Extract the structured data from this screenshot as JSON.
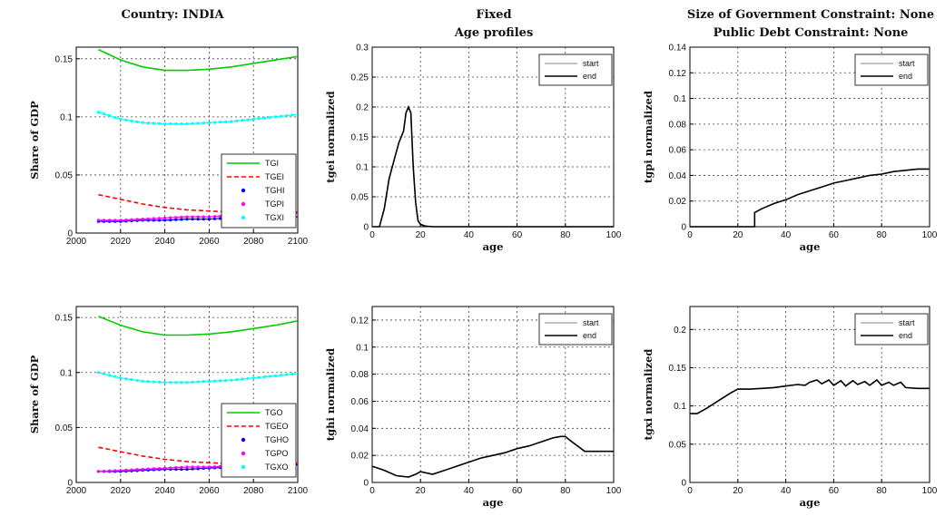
{
  "figure": {
    "titles": [
      "Country: INDIA",
      "Fixed",
      "Age profiles",
      "Size of Government Constraint: None",
      "Public Debt Constraint: None"
    ]
  },
  "chart_data": [
    {
      "id": "ax1",
      "type": "line",
      "title": "",
      "xlabel": "",
      "ylabel": "Share of GDP",
      "xlim": [
        2000,
        2100
      ],
      "ylim": [
        0,
        0.16
      ],
      "xticks": [
        2000,
        2020,
        2040,
        2060,
        2080,
        2100
      ],
      "yticks": [
        0,
        0.05,
        0.1,
        0.15
      ],
      "ytick_labels": [
        "0",
        "0.05",
        "0.1",
        "0.15"
      ],
      "grid": true,
      "legend": "inside lower right",
      "series": [
        {
          "name": "TGI",
          "color": "#00cc00",
          "style": "solid",
          "x": [
            2010,
            2020,
            2030,
            2040,
            2050,
            2060,
            2070,
            2080,
            2090,
            2100
          ],
          "y": [
            0.158,
            0.149,
            0.143,
            0.14,
            0.14,
            0.141,
            0.143,
            0.146,
            0.149,
            0.152
          ]
        },
        {
          "name": "TGEI",
          "color": "#ff0000",
          "style": "dashed",
          "x": [
            2010,
            2020,
            2030,
            2040,
            2050,
            2060,
            2070,
            2080,
            2090,
            2100
          ],
          "y": [
            0.033,
            0.029,
            0.025,
            0.022,
            0.02,
            0.019,
            0.018,
            0.018,
            0.018,
            0.018
          ]
        },
        {
          "name": "TGHI",
          "color": "#0000ff",
          "style": "dots",
          "x": [
            2010,
            2020,
            2030,
            2040,
            2050,
            2060,
            2070,
            2080,
            2090,
            2100
          ],
          "y": [
            0.01,
            0.01,
            0.011,
            0.011,
            0.012,
            0.012,
            0.013,
            0.013,
            0.014,
            0.014
          ]
        },
        {
          "name": "TGPI",
          "color": "#ff00ff",
          "style": "dots",
          "x": [
            2010,
            2020,
            2030,
            2040,
            2050,
            2060,
            2070,
            2080,
            2090,
            2100
          ],
          "y": [
            0.011,
            0.011,
            0.012,
            0.013,
            0.014,
            0.014,
            0.015,
            0.016,
            0.016,
            0.017
          ]
        },
        {
          "name": "TGXI",
          "color": "#00ffff",
          "style": "dots",
          "x": [
            2010,
            2020,
            2030,
            2040,
            2050,
            2060,
            2070,
            2080,
            2090,
            2100
          ],
          "y": [
            0.104,
            0.098,
            0.095,
            0.094,
            0.094,
            0.095,
            0.096,
            0.098,
            0.1,
            0.102
          ]
        }
      ]
    },
    {
      "id": "ax2",
      "type": "line",
      "title": "",
      "xlabel": "age",
      "ylabel": "tgei normalized",
      "xlim": [
        0,
        100
      ],
      "ylim": [
        0,
        0.3
      ],
      "xticks": [
        0,
        20,
        40,
        60,
        80,
        100
      ],
      "yticks": [
        0,
        0.05,
        0.1,
        0.15,
        0.2,
        0.25,
        0.3
      ],
      "ytick_labels": [
        "0",
        "0.05",
        "0.1",
        "0.15",
        "0.2",
        "0.25",
        "0.3"
      ],
      "grid": true,
      "legend": "top-right",
      "series": [
        {
          "name": "start",
          "color": "#b0b0b0",
          "style": "solid",
          "x": [
            0,
            3,
            5,
            7,
            9,
            11,
            13,
            14,
            15,
            16,
            17,
            18,
            19,
            20,
            22,
            25,
            30,
            100
          ],
          "y": [
            0,
            0,
            0.03,
            0.08,
            0.11,
            0.14,
            0.16,
            0.19,
            0.2,
            0.19,
            0.1,
            0.04,
            0.01,
            0.004,
            0.001,
            0,
            0,
            0
          ]
        },
        {
          "name": "end",
          "color": "#000000",
          "style": "solid",
          "x": [
            0,
            3,
            5,
            7,
            9,
            11,
            13,
            14,
            15,
            16,
            17,
            18,
            19,
            20,
            22,
            25,
            30,
            100
          ],
          "y": [
            0,
            0,
            0.03,
            0.08,
            0.11,
            0.14,
            0.16,
            0.19,
            0.2,
            0.19,
            0.1,
            0.04,
            0.01,
            0.004,
            0.001,
            0,
            0,
            0
          ]
        }
      ]
    },
    {
      "id": "ax3",
      "type": "line",
      "title": "",
      "xlabel": "age",
      "ylabel": "tgpi normalized",
      "xlim": [
        0,
        100
      ],
      "ylim": [
        0,
        0.14
      ],
      "xticks": [
        0,
        20,
        40,
        60,
        80,
        100
      ],
      "yticks": [
        0,
        0.02,
        0.04,
        0.06,
        0.08,
        0.1,
        0.12,
        0.14
      ],
      "ytick_labels": [
        "0",
        "0.02",
        "0.04",
        "0.06",
        "0.08",
        "0.1",
        "0.12",
        "0.14"
      ],
      "grid": true,
      "legend": "top-right",
      "series": [
        {
          "name": "start",
          "color": "#b0b0b0",
          "style": "solid",
          "x": [
            0,
            27,
            27,
            30,
            35,
            40,
            45,
            50,
            55,
            60,
            65,
            70,
            75,
            80,
            85,
            90,
            95,
            100
          ],
          "y": [
            0,
            0,
            0.011,
            0.014,
            0.018,
            0.021,
            0.025,
            0.028,
            0.031,
            0.034,
            0.036,
            0.038,
            0.04,
            0.041,
            0.043,
            0.044,
            0.045,
            0.045
          ]
        },
        {
          "name": "end",
          "color": "#000000",
          "style": "solid",
          "x": [
            0,
            27,
            27,
            30,
            35,
            40,
            45,
            50,
            55,
            60,
            65,
            70,
            75,
            80,
            85,
            90,
            95,
            100
          ],
          "y": [
            0,
            0,
            0.011,
            0.014,
            0.018,
            0.021,
            0.025,
            0.028,
            0.031,
            0.034,
            0.036,
            0.038,
            0.04,
            0.041,
            0.043,
            0.044,
            0.045,
            0.045
          ]
        }
      ]
    },
    {
      "id": "ax4",
      "type": "line",
      "title": "",
      "xlabel": "",
      "ylabel": "Share of GDP",
      "xlim": [
        2000,
        2100
      ],
      "ylim": [
        0,
        0.16
      ],
      "xticks": [
        2000,
        2020,
        2040,
        2060,
        2080,
        2100
      ],
      "yticks": [
        0,
        0.05,
        0.1,
        0.15
      ],
      "ytick_labels": [
        "0",
        "0.05",
        "0.1",
        "0.15"
      ],
      "grid": true,
      "legend": "inside lower right",
      "series": [
        {
          "name": "TGO",
          "color": "#00cc00",
          "style": "solid",
          "x": [
            2010,
            2020,
            2030,
            2040,
            2050,
            2060,
            2070,
            2080,
            2090,
            2100
          ],
          "y": [
            0.151,
            0.143,
            0.137,
            0.134,
            0.134,
            0.135,
            0.137,
            0.14,
            0.143,
            0.147
          ]
        },
        {
          "name": "TGEO",
          "color": "#ff0000",
          "style": "dashed",
          "x": [
            2010,
            2020,
            2030,
            2040,
            2050,
            2060,
            2070,
            2080,
            2090,
            2100
          ],
          "y": [
            0.032,
            0.028,
            0.024,
            0.021,
            0.019,
            0.018,
            0.017,
            0.017,
            0.017,
            0.017
          ]
        },
        {
          "name": "TGHO",
          "color": "#0000ff",
          "style": "dots",
          "x": [
            2010,
            2020,
            2030,
            2040,
            2050,
            2060,
            2070,
            2080,
            2090,
            2100
          ],
          "y": [
            0.01,
            0.01,
            0.011,
            0.012,
            0.012,
            0.013,
            0.014,
            0.015,
            0.016,
            0.016
          ]
        },
        {
          "name": "TGPO",
          "color": "#ff00ff",
          "style": "dots",
          "x": [
            2010,
            2020,
            2030,
            2040,
            2050,
            2060,
            2070,
            2080,
            2090,
            2100
          ],
          "y": [
            0.01,
            0.011,
            0.012,
            0.013,
            0.014,
            0.014,
            0.015,
            0.016,
            0.017,
            0.018
          ]
        },
        {
          "name": "TGXO",
          "color": "#00ffff",
          "style": "dots",
          "x": [
            2010,
            2020,
            2030,
            2040,
            2050,
            2060,
            2070,
            2080,
            2090,
            2100
          ],
          "y": [
            0.1,
            0.095,
            0.092,
            0.091,
            0.091,
            0.092,
            0.093,
            0.095,
            0.097,
            0.099
          ]
        }
      ]
    },
    {
      "id": "ax5",
      "type": "line",
      "title": "",
      "xlabel": "age",
      "ylabel": "tghi normalized",
      "xlim": [
        0,
        100
      ],
      "ylim": [
        0,
        0.13
      ],
      "xticks": [
        0,
        20,
        40,
        60,
        80,
        100
      ],
      "yticks": [
        0,
        0.02,
        0.04,
        0.06,
        0.08,
        0.1,
        0.12
      ],
      "ytick_labels": [
        "0",
        "0.02",
        "0.04",
        "0.06",
        "0.08",
        "0.1",
        "0.12"
      ],
      "grid": true,
      "legend": "top-right",
      "series": [
        {
          "name": "start",
          "color": "#b0b0b0",
          "style": "solid",
          "x": [
            0,
            5,
            10,
            15,
            18,
            20,
            25,
            30,
            35,
            40,
            45,
            50,
            55,
            60,
            65,
            70,
            75,
            78,
            80,
            82,
            85,
            88,
            90,
            95,
            100
          ],
          "y": [
            0.012,
            0.009,
            0.005,
            0.004,
            0.006,
            0.008,
            0.006,
            0.009,
            0.012,
            0.015,
            0.018,
            0.02,
            0.022,
            0.025,
            0.027,
            0.03,
            0.033,
            0.034,
            0.034,
            0.031,
            0.027,
            0.023,
            0.023,
            0.023,
            0.023
          ]
        },
        {
          "name": "end",
          "color": "#000000",
          "style": "solid",
          "x": [
            0,
            5,
            10,
            15,
            18,
            20,
            25,
            30,
            35,
            40,
            45,
            50,
            55,
            60,
            65,
            70,
            75,
            78,
            80,
            82,
            85,
            88,
            90,
            95,
            100
          ],
          "y": [
            0.012,
            0.009,
            0.005,
            0.004,
            0.006,
            0.008,
            0.006,
            0.009,
            0.012,
            0.015,
            0.018,
            0.02,
            0.022,
            0.025,
            0.027,
            0.03,
            0.033,
            0.034,
            0.034,
            0.031,
            0.027,
            0.023,
            0.023,
            0.023,
            0.023
          ]
        }
      ]
    },
    {
      "id": "ax6",
      "type": "line",
      "title": "",
      "xlabel": "age",
      "ylabel": "tgxi normalized",
      "xlim": [
        0,
        100
      ],
      "ylim": [
        0,
        0.23
      ],
      "xticks": [
        0,
        20,
        40,
        60,
        80,
        100
      ],
      "yticks": [
        0,
        0.05,
        0.1,
        0.15,
        0.2
      ],
      "ytick_labels": [
        "0",
        "0.05",
        "0.1",
        "0.15",
        "0.2"
      ],
      "grid": true,
      "legend": "top-right",
      "series": [
        {
          "name": "start",
          "color": "#b0b0b0",
          "style": "solid",
          "x": [
            0,
            3,
            7,
            12,
            17,
            20,
            25,
            30,
            35,
            40,
            45,
            48,
            50,
            53,
            55,
            58,
            60,
            63,
            65,
            68,
            70,
            73,
            75,
            78,
            80,
            83,
            85,
            88,
            90,
            95,
            100
          ],
          "y": [
            0.09,
            0.09,
            0.097,
            0.107,
            0.117,
            0.122,
            0.122,
            0.123,
            0.124,
            0.126,
            0.128,
            0.127,
            0.131,
            0.134,
            0.129,
            0.134,
            0.127,
            0.133,
            0.126,
            0.133,
            0.128,
            0.132,
            0.127,
            0.134,
            0.127,
            0.131,
            0.127,
            0.131,
            0.124,
            0.123,
            0.123
          ]
        },
        {
          "name": "end",
          "color": "#000000",
          "style": "solid",
          "x": [
            0,
            3,
            7,
            12,
            17,
            20,
            25,
            30,
            35,
            40,
            45,
            48,
            50,
            53,
            55,
            58,
            60,
            63,
            65,
            68,
            70,
            73,
            75,
            78,
            80,
            83,
            85,
            88,
            90,
            95,
            100
          ],
          "y": [
            0.09,
            0.09,
            0.097,
            0.107,
            0.117,
            0.122,
            0.122,
            0.123,
            0.124,
            0.126,
            0.128,
            0.127,
            0.131,
            0.134,
            0.129,
            0.134,
            0.127,
            0.133,
            0.126,
            0.133,
            0.128,
            0.132,
            0.127,
            0.134,
            0.127,
            0.131,
            0.127,
            0.131,
            0.124,
            0.123,
            0.123
          ]
        }
      ]
    }
  ]
}
